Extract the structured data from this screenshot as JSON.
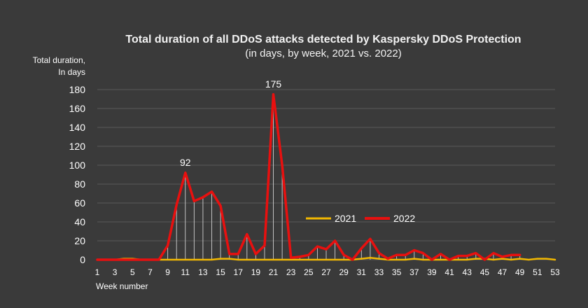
{
  "colors": {
    "background": "#3a3a3a",
    "series_2021": "#f2b800",
    "series_2022": "#e8100f",
    "drop_lines": "#cfcfcf",
    "grid": "#5a5a5a"
  },
  "chart_data": {
    "type": "line",
    "title": "Total duration of all DDoS attacks detected by Kaspersky DDoS Protection",
    "subtitle": "(in days, by week, 2021 vs. 2022)",
    "ylabel": "Total duration,\nIn days",
    "xlabel": "Week number",
    "ylim": [
      0,
      180
    ],
    "yticks": [
      0,
      20,
      40,
      60,
      80,
      100,
      120,
      140,
      160,
      180
    ],
    "x": [
      1,
      2,
      3,
      4,
      5,
      6,
      7,
      8,
      9,
      10,
      11,
      12,
      13,
      14,
      15,
      16,
      17,
      18,
      19,
      20,
      21,
      22,
      23,
      24,
      25,
      26,
      27,
      28,
      29,
      30,
      31,
      32,
      33,
      34,
      35,
      36,
      37,
      38,
      39,
      40,
      41,
      42,
      43,
      44,
      45,
      46,
      47,
      48,
      49,
      50,
      51,
      52,
      53
    ],
    "xtick_labels": [
      "1",
      "3",
      "5",
      "7",
      "9",
      "11",
      "13",
      "15",
      "17",
      "19",
      "21",
      "23",
      "25",
      "27",
      "29",
      "31",
      "33",
      "35",
      "37",
      "39",
      "41",
      "43",
      "45",
      "47",
      "49",
      "51",
      "53"
    ],
    "grid": true,
    "legend_position": "center-right",
    "series": [
      {
        "name": "2021",
        "values": [
          0,
          0,
          0,
          1,
          1,
          0,
          0,
          0,
          0,
          0,
          0,
          0,
          0,
          0,
          1,
          1,
          0,
          0,
          0,
          0,
          0,
          0,
          0,
          0,
          0,
          0,
          0,
          0,
          0,
          0,
          1,
          2,
          1,
          0,
          0,
          0,
          1,
          0,
          0,
          0,
          0,
          0,
          0,
          1,
          1,
          0,
          1,
          0,
          1,
          0,
          1,
          1,
          0
        ]
      },
      {
        "name": "2022",
        "values": [
          0,
          0,
          0,
          0,
          0,
          0,
          0,
          0,
          15,
          58,
          92,
          62,
          66,
          72,
          57,
          6,
          6,
          27,
          6,
          15,
          175,
          100,
          2,
          3,
          5,
          14,
          11,
          20,
          5,
          0,
          12,
          22,
          7,
          1,
          5,
          5,
          10,
          7,
          0,
          6,
          0,
          4,
          4,
          7,
          0,
          7,
          3,
          5,
          5,
          null,
          null,
          null,
          null
        ]
      }
    ],
    "annotations": [
      {
        "x": 11,
        "y": 92,
        "text": "92"
      },
      {
        "x": 21,
        "y": 175,
        "text": "175"
      }
    ]
  }
}
